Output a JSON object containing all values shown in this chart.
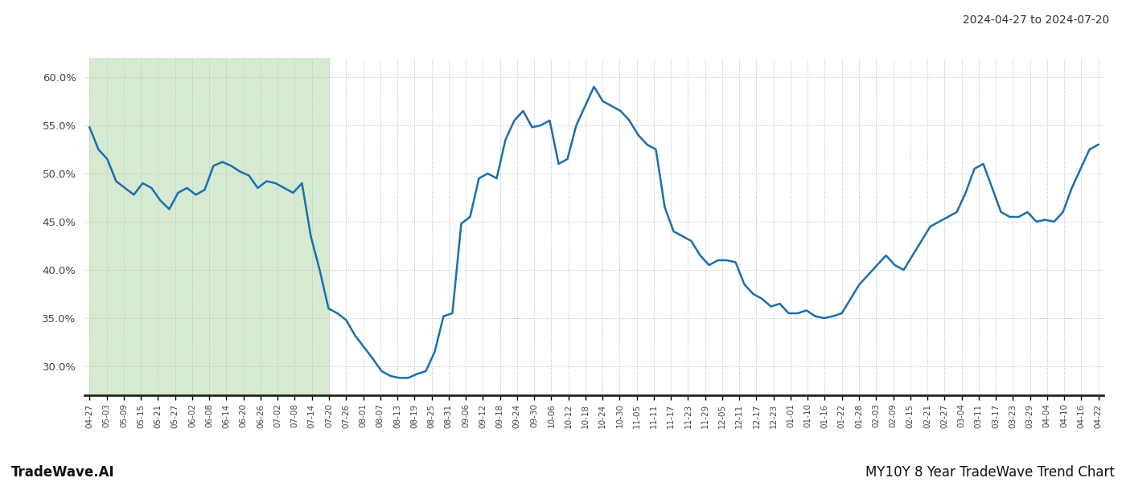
{
  "title_top_right": "2024-04-27 to 2024-07-20",
  "footer_left": "TradeWave.AI",
  "footer_right": "MY10Y 8 Year TradeWave Trend Chart",
  "background_color": "#ffffff",
  "line_color": "#1a6faf",
  "line_width": 1.8,
  "shaded_region_color": "#d6ead2",
  "shaded_x_start_label": "04-27",
  "shaded_x_end_label": "07-20",
  "ylim": [
    27.0,
    62.0
  ],
  "yticks": [
    30.0,
    35.0,
    40.0,
    45.0,
    50.0,
    55.0,
    60.0
  ],
  "x_labels": [
    "04-27",
    "05-03",
    "05-09",
    "05-15",
    "05-21",
    "05-27",
    "06-02",
    "06-08",
    "06-14",
    "06-20",
    "06-26",
    "07-02",
    "07-08",
    "07-14",
    "07-20",
    "07-26",
    "08-01",
    "08-07",
    "08-13",
    "08-19",
    "08-25",
    "08-31",
    "09-06",
    "09-12",
    "09-18",
    "09-24",
    "09-30",
    "10-06",
    "10-12",
    "10-18",
    "10-24",
    "10-30",
    "11-05",
    "11-11",
    "11-17",
    "11-23",
    "11-29",
    "12-05",
    "12-11",
    "12-17",
    "12-23",
    "01-01",
    "01-10",
    "01-16",
    "01-22",
    "01-28",
    "02-03",
    "02-09",
    "02-15",
    "02-21",
    "02-27",
    "03-04",
    "03-11",
    "03-17",
    "03-23",
    "03-29",
    "04-04",
    "04-10",
    "04-16",
    "04-22"
  ],
  "y_values": [
    54.8,
    52.5,
    51.5,
    49.2,
    48.5,
    47.8,
    49.0,
    48.5,
    47.2,
    46.3,
    48.0,
    48.5,
    47.8,
    48.3,
    50.8,
    51.2,
    50.8,
    50.2,
    49.8,
    48.5,
    49.2,
    49.0,
    48.5,
    48.0,
    49.0,
    43.5,
    40.0,
    36.0,
    35.5,
    34.8,
    33.2,
    32.0,
    30.8,
    29.5,
    29.0,
    28.8,
    28.8,
    29.2,
    29.5,
    31.5,
    35.2,
    35.5,
    44.8,
    45.5,
    49.5,
    50.0,
    49.5,
    53.5,
    55.5,
    56.5,
    54.8,
    55.0,
    55.5,
    51.0,
    51.5,
    55.0,
    57.0,
    59.0,
    57.5,
    57.0,
    56.5,
    55.5,
    54.0,
    53.0,
    52.5,
    46.5,
    44.0,
    43.5,
    43.0,
    41.5,
    40.5,
    41.0,
    41.0,
    40.8,
    38.5,
    37.5,
    37.0,
    36.2,
    36.5,
    35.5,
    35.5,
    35.8,
    35.2,
    35.0,
    35.2,
    35.5,
    37.0,
    38.5,
    39.5,
    40.5,
    41.5,
    40.5,
    40.0,
    41.5,
    43.0,
    44.5,
    45.0,
    45.5,
    46.0,
    48.0,
    50.5,
    51.0,
    48.5,
    46.0,
    45.5,
    45.5,
    46.0,
    45.0,
    45.2,
    45.0,
    46.0,
    48.5,
    50.5,
    52.5,
    53.0
  ]
}
